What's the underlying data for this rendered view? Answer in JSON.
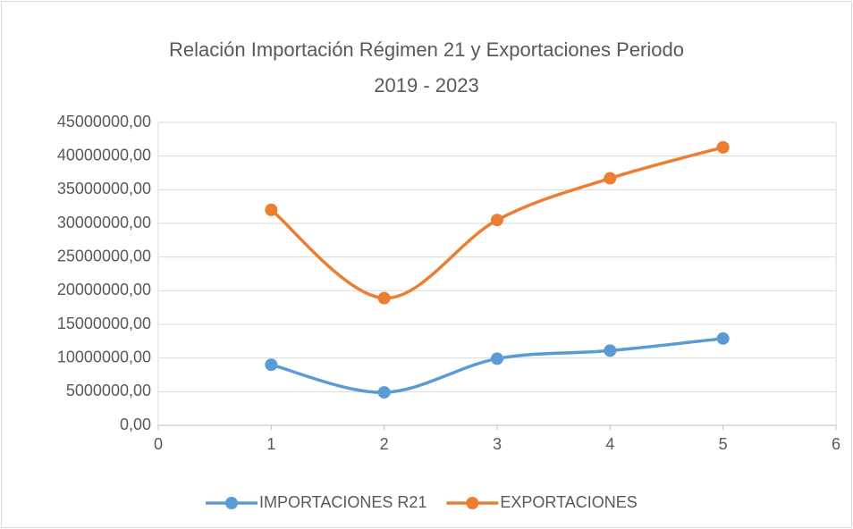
{
  "chart_data": {
    "type": "scatter-smooth",
    "title": "Relación Importación Régimen 21 y Exportaciones Periodo\n2019 - 2023",
    "x": [
      1,
      2,
      3,
      4,
      5
    ],
    "series": [
      {
        "name": "IMPORTACIONES R21",
        "color": "#5b9bd5",
        "values": [
          9000000,
          4900000,
          9900000,
          11100000,
          12900000
        ]
      },
      {
        "name": "EXPORTACIONES",
        "color": "#ed7d31",
        "values": [
          32000000,
          18900000,
          30500000,
          36700000,
          41300000
        ]
      }
    ],
    "xlim": [
      0,
      6
    ],
    "xticks": [
      0,
      1,
      2,
      3,
      4,
      5,
      6
    ],
    "ylim": [
      0,
      45000000
    ],
    "yticks": [
      {
        "value": 0,
        "label": "0,00"
      },
      {
        "value": 5000000,
        "label": "5000000,00"
      },
      {
        "value": 10000000,
        "label": "10000000,00"
      },
      {
        "value": 15000000,
        "label": "15000000,00"
      },
      {
        "value": 20000000,
        "label": "20000000,00"
      },
      {
        "value": 25000000,
        "label": "25000000,00"
      },
      {
        "value": 30000000,
        "label": "30000000,00"
      },
      {
        "value": 35000000,
        "label": "35000000,00"
      },
      {
        "value": 40000000,
        "label": "40000000,00"
      },
      {
        "value": 45000000,
        "label": "45000000,00"
      }
    ],
    "grid": true,
    "legend": "bottom"
  }
}
